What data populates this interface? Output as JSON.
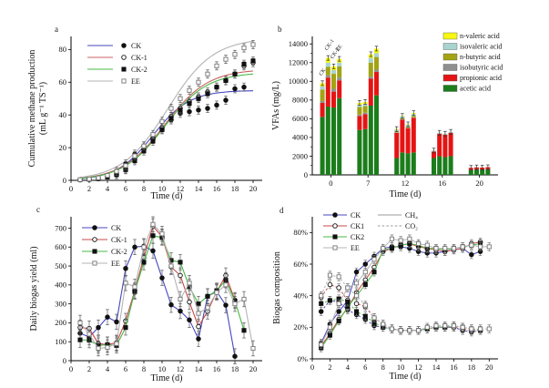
{
  "figure": {
    "background": "#ffffff"
  },
  "chart_data": [
    {
      "panel": "a",
      "label": "a",
      "type": "scatter",
      "xlabel": "Time (d)",
      "ylabel_lines": [
        "Cumulative methane production",
        "(mL g⁻¹ TS⁻¹)"
      ],
      "xlim": [
        0,
        21
      ],
      "ylim": [
        0,
        88
      ],
      "xticks": [
        0,
        2,
        4,
        6,
        8,
        10,
        12,
        14,
        16,
        18,
        20
      ],
      "yticks": [
        0,
        20,
        40,
        60,
        80
      ],
      "x": [
        1,
        2,
        3,
        4,
        5,
        6,
        7,
        8,
        9,
        10,
        11,
        12,
        13,
        14,
        15,
        16,
        17,
        18,
        19,
        20
      ],
      "series": [
        {
          "name": "CK",
          "line_color": "#4747c2",
          "marker": "circle",
          "filled": true,
          "marker_stroke": "#111111",
          "err": 2.5,
          "values": [
            0.3,
            0.7,
            1.2,
            2.3,
            4.5,
            10,
            16,
            21,
            26,
            31,
            37,
            41,
            42,
            43,
            44,
            46,
            49,
            56,
            57,
            null
          ],
          "fit": {
            "L": 55,
            "k": 0.5,
            "x0": 9.0
          }
        },
        {
          "name": "CK-1",
          "line_color": "#c86060",
          "marker": "circle",
          "filled": false,
          "marker_stroke": "#111111",
          "err": 2.5,
          "values": [
            0.3,
            0.6,
            1,
            2,
            3.5,
            7,
            13,
            19,
            25,
            32,
            39,
            44,
            48,
            51,
            54,
            57,
            61,
            65,
            70,
            72
          ],
          "fit": {
            "L": 68,
            "k": 0.42,
            "x0": 10.3
          }
        },
        {
          "name": "CK-2",
          "line_color": "#46b846",
          "marker": "square",
          "filled": true,
          "marker_stroke": "#111111",
          "err": 2.5,
          "values": [
            0.3,
            0.6,
            1,
            2,
            3.5,
            6.5,
            12,
            18,
            24,
            31,
            38,
            43,
            47,
            50,
            53,
            57,
            61,
            65,
            71,
            73
          ],
          "fit": {
            "L": 66,
            "k": 0.43,
            "x0": 10.3
          }
        },
        {
          "name": "EE",
          "line_color": "#b4b4b4",
          "marker": "square",
          "filled": false,
          "marker_stroke": "#777777",
          "err": 2.5,
          "values": [
            0.4,
            0.8,
            1.5,
            3,
            5.5,
            9,
            15,
            21,
            28,
            36,
            44,
            50,
            55,
            60,
            65,
            70,
            74,
            77,
            81,
            83
          ],
          "fit": {
            "L": 87,
            "k": 0.4,
            "x0": 10.6
          }
        }
      ]
    },
    {
      "panel": "b",
      "label": "b",
      "type": "stacked-bar",
      "xlabel": "Time (d)",
      "ylabel_lines": [
        "VFAs  (mg/L)"
      ],
      "ylim": [
        0,
        14800
      ],
      "yticks": [
        0,
        2000,
        4000,
        6000,
        8000,
        10000,
        12000,
        14000
      ],
      "yminor": 1000,
      "categories": [
        "0",
        "7",
        "12",
        "16",
        "20"
      ],
      "bar_names": [
        "CK",
        "CK-1",
        "CK-2",
        "EE"
      ],
      "group0_bar_labels": [
        "CK",
        "CK-1",
        "CK-2",
        "EE"
      ],
      "acids": [
        {
          "name": "acetic acid",
          "color": "#1b7d1b"
        },
        {
          "name": "propionic acid",
          "color": "#e51414"
        },
        {
          "name": "isobutyric acid",
          "color": "#8f8f8f"
        },
        {
          "name": "n-butyric acid",
          "color": "#a3a314"
        },
        {
          "name": "isovaleric acid",
          "color": "#a9d3cf"
        },
        {
          "name": "n-valeric acid",
          "color": "#f7f711"
        }
      ],
      "legend_order": [
        5,
        4,
        3,
        2,
        1,
        0
      ],
      "err": 250,
      "values": [
        [
          [
            6200,
            1500,
            200,
            1200,
            350,
            350
          ],
          [
            7300,
            3100,
            250,
            900,
            450,
            500
          ],
          [
            7200,
            1700,
            300,
            1600,
            400,
            400
          ],
          [
            8200,
            1900,
            300,
            1200,
            400,
            400
          ]
        ],
        [
          [
            4800,
            1500,
            150,
            800,
            250,
            200
          ],
          [
            4900,
            1600,
            150,
            700,
            250,
            200
          ],
          [
            7400,
            2900,
            200,
            1500,
            500,
            400
          ],
          [
            8500,
            2500,
            250,
            1350,
            400,
            500
          ]
        ],
        [
          [
            1800,
            2700,
            50,
            100,
            200,
            50
          ],
          [
            2400,
            3500,
            50,
            100,
            200,
            50
          ],
          [
            2300,
            2700,
            50,
            100,
            200,
            50
          ],
          [
            2400,
            3700,
            50,
            150,
            200,
            100
          ]
        ],
        [
          [
            1800,
            700,
            0,
            0,
            100,
            0
          ],
          [
            2000,
            2400,
            0,
            0,
            100,
            0
          ],
          [
            1900,
            2400,
            0,
            0,
            100,
            0
          ],
          [
            2000,
            2500,
            0,
            0,
            100,
            0
          ]
        ],
        [
          [
            550,
            200,
            0,
            0,
            0,
            0
          ],
          [
            600,
            200,
            0,
            0,
            0,
            0
          ],
          [
            580,
            200,
            0,
            0,
            0,
            0
          ],
          [
            620,
            200,
            0,
            0,
            0,
            0
          ]
        ]
      ]
    },
    {
      "panel": "c",
      "label": "c",
      "type": "line",
      "xlabel": "Time (d)",
      "ylabel_lines": [
        "Daily biogas yield (ml)"
      ],
      "xlim": [
        0,
        21
      ],
      "ylim": [
        0,
        760
      ],
      "xticks": [
        0,
        2,
        4,
        6,
        8,
        10,
        12,
        14,
        16,
        18,
        20
      ],
      "yticks": [
        0,
        100,
        200,
        300,
        400,
        500,
        600,
        700
      ],
      "x": [
        1,
        2,
        3,
        4,
        5,
        6,
        7,
        8,
        9,
        10,
        11,
        12,
        13,
        14,
        15,
        16,
        17,
        18,
        19,
        20
      ],
      "series": [
        {
          "name": "CK",
          "line_color": "#4747c2",
          "marker": "circle",
          "filled": true,
          "marker_stroke": "#111111",
          "err": 40,
          "values": [
            145,
            125,
            175,
            230,
            205,
            487,
            600,
            605,
            580,
            437,
            295,
            262,
            215,
            115,
            340,
            365,
            293,
            23,
            null,
            null
          ]
        },
        {
          "name": "CK-1",
          "line_color": "#c84848",
          "marker": "circle",
          "filled": false,
          "marker_stroke": "#111111",
          "err": 40,
          "values": [
            175,
            170,
            90,
            85,
            95,
            210,
            370,
            545,
            710,
            655,
            495,
            450,
            310,
            180,
            260,
            365,
            450,
            320,
            null,
            null
          ]
        },
        {
          "name": "CK-2",
          "line_color": "#46b846",
          "marker": "square",
          "filled": true,
          "marker_stroke": "#111111",
          "err": 40,
          "values": [
            110,
            108,
            80,
            85,
            80,
            175,
            365,
            520,
            660,
            650,
            530,
            520,
            390,
            300,
            340,
            370,
            425,
            315,
            160,
            null
          ]
        },
        {
          "name": "EE",
          "line_color": "#b4b4b4",
          "marker": "square",
          "filled": false,
          "marker_stroke": "#777777",
          "err": 40,
          "values": [
            200,
            140,
            65,
            70,
            90,
            410,
            390,
            600,
            720,
            670,
            500,
            325,
            410,
            250,
            280,
            360,
            400,
            300,
            325,
            65
          ]
        }
      ]
    },
    {
      "panel": "d",
      "label": "d",
      "type": "line-multi-gas",
      "xlabel": "Time (d)",
      "ylabel_lines": [
        "Biogas composition"
      ],
      "xlim": [
        0,
        21
      ],
      "ylim": [
        0,
        90
      ],
      "xticks": [
        0,
        2,
        4,
        6,
        8,
        10,
        12,
        14,
        16,
        18,
        20
      ],
      "yticks": [
        0,
        20,
        40,
        60,
        80
      ],
      "ytick_suffix": "%",
      "x": [
        1,
        2,
        3,
        4,
        5,
        6,
        7,
        8,
        9,
        10,
        11,
        12,
        13,
        14,
        15,
        16,
        17,
        18,
        19,
        20
      ],
      "gas_styles": [
        {
          "key": "CH4",
          "name": "CH₄",
          "dash": ""
        },
        {
          "key": "CO2",
          "name": "CO₂",
          "dash": "2.5 2.2"
        }
      ],
      "series": [
        {
          "name": "CK",
          "line_color": "#4747c2",
          "marker": "circle",
          "filled": true,
          "marker_stroke": "#111111",
          "err": 2.5,
          "gases": {
            "CH4": [
              10,
              22,
              30,
              37,
              55,
              60,
              65,
              70,
              71,
              71,
              70,
              68,
              67,
              67,
              68,
              69,
              70,
              66,
              68,
              null
            ],
            "CO2": [
              30,
              37,
              36,
              31,
              28,
              25,
              21,
              20,
              19,
              18,
              18,
              18,
              19,
              20,
              20,
              20,
              18,
              17,
              18,
              null
            ]
          }
        },
        {
          "name": "CK1",
          "line_color": "#c84848",
          "marker": "circle",
          "filled": false,
          "marker_stroke": "#111111",
          "err": 2.5,
          "gases": {
            "CH4": [
              8,
              16,
              25,
              32,
              42,
              50,
              58,
              68,
              70,
              72,
              73,
              71,
              70,
              69,
              68,
              69,
              70,
              73,
              74,
              null
            ],
            "CO2": [
              39,
              47,
              45,
              37,
              35,
              33,
              26,
              22,
              19,
              18,
              18,
              18,
              19,
              20,
              20,
              20,
              19,
              18,
              18,
              null
            ]
          }
        },
        {
          "name": "CK2",
          "line_color": "#46b846",
          "marker": "square",
          "filled": true,
          "marker_stroke": "#111111",
          "err": 2.5,
          "gases": {
            "CH4": [
              7,
              15,
              24,
              33,
              40,
              47,
              55,
              69,
              70,
              72,
              73,
              72,
              70,
              70,
              69,
              70,
              71,
              72,
              73,
              null
            ],
            "CO2": [
              35,
              37,
              38,
              36,
              30,
              27,
              23,
              20,
              19,
              18,
              18,
              18,
              19,
              20,
              20,
              21,
              20,
              19,
              18,
              null
            ]
          }
        },
        {
          "name": "EE",
          "line_color": "#b4b4b4",
          "marker": "square",
          "filled": false,
          "marker_stroke": "#777777",
          "err": 2.5,
          "gases": {
            "CH4": [
              9,
              20,
              35,
              45,
              48,
              55,
              63,
              70,
              76,
              75,
              76,
              73,
              72,
              70,
              70,
              70,
              71,
              72,
              71,
              71
            ],
            "CO2": [
              40,
              53,
              52,
              45,
              40,
              34,
              26,
              22,
              19,
              18,
              18,
              18,
              20,
              21,
              21,
              21,
              20,
              19,
              19,
              19
            ]
          }
        }
      ]
    }
  ]
}
